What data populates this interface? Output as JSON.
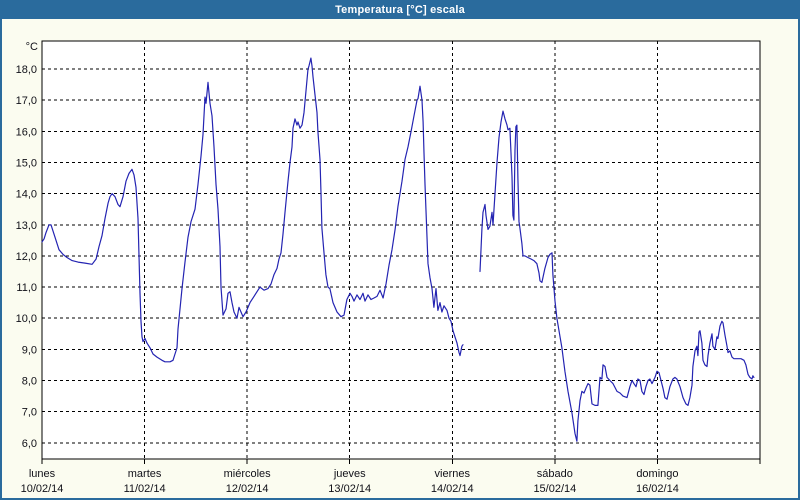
{
  "window": {
    "title": "Temperatura [°C] escala"
  },
  "chart_data": {
    "type": "line",
    "title": "Temperatura [°C] escala",
    "y_unit": "°C",
    "ylabel": "Temperatura",
    "xlabel": "",
    "grid": true,
    "legend": "none",
    "line_color": "#2424b2",
    "text_color": "#101018",
    "y_axis": {
      "top": 18.9,
      "bottom": 5.48
    },
    "x_axis": {
      "min_day": 0,
      "max_day": 7
    },
    "y_ticks": [
      {
        "v": 18,
        "label": "18,0"
      },
      {
        "v": 17,
        "label": "17,0"
      },
      {
        "v": 16,
        "label": "16,0"
      },
      {
        "v": 15,
        "label": "15,0"
      },
      {
        "v": 14,
        "label": "14,0"
      },
      {
        "v": 13,
        "label": "13,0"
      },
      {
        "v": 12,
        "label": "12,0"
      },
      {
        "v": 11,
        "label": "11,0"
      },
      {
        "v": 10,
        "label": "10,0"
      },
      {
        "v": 9,
        "label": "9,0"
      },
      {
        "v": 8,
        "label": "8,0"
      },
      {
        "v": 7,
        "label": "7,0"
      },
      {
        "v": 6,
        "label": "6,0"
      }
    ],
    "x_ticks": [
      {
        "day": 0,
        "name": "lunes",
        "date": "10/02/14"
      },
      {
        "day": 1,
        "name": "martes",
        "date": "11/02/14"
      },
      {
        "day": 2,
        "name": "miércoles",
        "date": "12/02/14"
      },
      {
        "day": 3,
        "name": "jueves",
        "date": "13/02/14"
      },
      {
        "day": 4,
        "name": "viernes",
        "date": "14/02/14"
      },
      {
        "day": 5,
        "name": "sábado",
        "date": "15/02/14"
      },
      {
        "day": 6,
        "name": "domingo",
        "date": "16/02/14"
      }
    ],
    "series_name": "Temperatura [°C]",
    "segments": [
      [
        [
          0.0,
          12.45
        ],
        [
          0.02,
          12.55
        ],
        [
          0.039,
          12.75
        ],
        [
          0.068,
          13.0
        ],
        [
          0.088,
          13.0
        ],
        [
          0.127,
          12.6
        ],
        [
          0.166,
          12.2
        ],
        [
          0.205,
          12.05
        ],
        [
          0.244,
          11.95
        ],
        [
          0.293,
          11.85
        ],
        [
          0.351,
          11.8
        ],
        [
          0.419,
          11.77
        ],
        [
          0.488,
          11.73
        ],
        [
          0.527,
          11.9
        ],
        [
          0.556,
          12.3
        ],
        [
          0.585,
          12.65
        ],
        [
          0.614,
          13.2
        ],
        [
          0.644,
          13.7
        ],
        [
          0.663,
          13.9
        ],
        [
          0.683,
          14.0
        ],
        [
          0.712,
          13.9
        ],
        [
          0.741,
          13.65
        ],
        [
          0.76,
          13.58
        ],
        [
          0.79,
          13.9
        ],
        [
          0.819,
          14.4
        ],
        [
          0.848,
          14.65
        ],
        [
          0.877,
          14.78
        ],
        [
          0.897,
          14.6
        ],
        [
          0.916,
          14.2
        ],
        [
          0.936,
          13.2
        ],
        [
          0.946,
          12.0
        ],
        [
          0.955,
          10.8
        ],
        [
          0.965,
          9.9
        ],
        [
          0.975,
          9.4
        ],
        [
          0.985,
          9.25
        ],
        [
          1.004,
          9.35
        ],
        [
          1.024,
          9.2
        ],
        [
          1.053,
          9.05
        ],
        [
          1.082,
          8.85
        ],
        [
          1.121,
          8.75
        ],
        [
          1.17,
          8.65
        ],
        [
          1.199,
          8.6
        ],
        [
          1.248,
          8.6
        ],
        [
          1.277,
          8.65
        ],
        [
          1.297,
          8.85
        ],
        [
          1.316,
          9.05
        ],
        [
          1.326,
          9.65
        ],
        [
          1.345,
          10.3
        ],
        [
          1.365,
          10.95
        ],
        [
          1.394,
          11.8
        ],
        [
          1.423,
          12.6
        ],
        [
          1.453,
          13.1
        ],
        [
          1.492,
          13.5
        ],
        [
          1.521,
          14.3
        ],
        [
          1.55,
          15.2
        ],
        [
          1.57,
          15.9
        ],
        [
          1.589,
          17.1
        ],
        [
          1.599,
          16.9
        ],
        [
          1.618,
          17.57
        ],
        [
          1.638,
          16.9
        ],
        [
          1.657,
          16.5
        ],
        [
          1.677,
          15.5
        ],
        [
          1.696,
          14.3
        ],
        [
          1.716,
          13.5
        ],
        [
          1.735,
          12.3
        ],
        [
          1.745,
          11.0
        ],
        [
          1.765,
          10.1
        ],
        [
          1.794,
          10.3
        ],
        [
          1.813,
          10.8
        ],
        [
          1.833,
          10.85
        ],
        [
          1.852,
          10.5
        ],
        [
          1.872,
          10.2
        ],
        [
          1.901,
          10.0
        ],
        [
          1.921,
          10.35
        ],
        [
          1.94,
          10.2
        ],
        [
          1.96,
          10.05
        ],
        [
          1.989,
          10.2
        ],
        [
          2.028,
          10.5
        ],
        [
          2.067,
          10.7
        ],
        [
          2.096,
          10.85
        ],
        [
          2.125,
          11.0
        ],
        [
          2.164,
          10.9
        ],
        [
          2.203,
          10.95
        ],
        [
          2.233,
          11.1
        ],
        [
          2.262,
          11.4
        ],
        [
          2.291,
          11.6
        ],
        [
          2.311,
          11.9
        ],
        [
          2.33,
          12.1
        ],
        [
          2.35,
          12.7
        ],
        [
          2.369,
          13.4
        ],
        [
          2.398,
          14.4
        ],
        [
          2.418,
          15.0
        ],
        [
          2.437,
          15.5
        ],
        [
          2.447,
          16.1
        ],
        [
          2.467,
          16.4
        ],
        [
          2.486,
          16.2
        ],
        [
          2.496,
          16.3
        ],
        [
          2.515,
          16.1
        ],
        [
          2.535,
          16.2
        ],
        [
          2.554,
          16.6
        ],
        [
          2.574,
          17.3
        ],
        [
          2.593,
          18.0
        ],
        [
          2.603,
          18.1
        ],
        [
          2.622,
          18.35
        ],
        [
          2.632,
          18.1
        ],
        [
          2.642,
          17.75
        ],
        [
          2.661,
          17.2
        ],
        [
          2.681,
          16.6
        ],
        [
          2.69,
          16.0
        ],
        [
          2.71,
          15.1
        ],
        [
          2.72,
          14.0
        ],
        [
          2.729,
          12.9
        ],
        [
          2.749,
          12.1
        ],
        [
          2.768,
          11.4
        ],
        [
          2.788,
          11.0
        ],
        [
          2.807,
          10.95
        ],
        [
          2.837,
          10.5
        ],
        [
          2.876,
          10.2
        ],
        [
          2.915,
          10.05
        ],
        [
          2.944,
          10.1
        ],
        [
          2.973,
          10.6
        ],
        [
          3.003,
          10.8
        ],
        [
          3.022,
          10.7
        ],
        [
          3.042,
          10.55
        ],
        [
          3.071,
          10.75
        ],
        [
          3.1,
          10.6
        ],
        [
          3.13,
          10.8
        ],
        [
          3.149,
          10.55
        ],
        [
          3.178,
          10.75
        ],
        [
          3.208,
          10.6
        ],
        [
          3.237,
          10.65
        ],
        [
          3.266,
          10.7
        ],
        [
          3.295,
          10.9
        ],
        [
          3.325,
          10.65
        ],
        [
          3.354,
          11.1
        ],
        [
          3.383,
          11.7
        ],
        [
          3.412,
          12.2
        ],
        [
          3.442,
          12.85
        ],
        [
          3.471,
          13.6
        ],
        [
          3.51,
          14.4
        ],
        [
          3.539,
          15.1
        ],
        [
          3.568,
          15.5
        ],
        [
          3.598,
          16.0
        ],
        [
          3.627,
          16.5
        ],
        [
          3.656,
          17.0
        ],
        [
          3.666,
          17.05
        ],
        [
          3.685,
          17.45
        ],
        [
          3.705,
          17.0
        ],
        [
          3.715,
          16.3
        ],
        [
          3.724,
          15.3
        ],
        [
          3.734,
          14.3
        ],
        [
          3.744,
          13.45
        ],
        [
          3.753,
          12.6
        ],
        [
          3.763,
          11.75
        ],
        [
          3.783,
          11.3
        ],
        [
          3.802,
          10.95
        ],
        [
          3.821,
          10.35
        ],
        [
          3.841,
          10.95
        ],
        [
          3.86,
          10.25
        ],
        [
          3.88,
          10.5
        ],
        [
          3.899,
          10.2
        ],
        [
          3.919,
          10.4
        ],
        [
          3.948,
          10.25
        ],
        [
          3.968,
          10.0
        ],
        [
          3.987,
          9.9
        ],
        [
          4.007,
          9.6
        ],
        [
          4.026,
          9.4
        ],
        [
          4.046,
          9.2
        ],
        [
          4.065,
          8.9
        ],
        [
          4.075,
          8.8
        ],
        [
          4.094,
          9.1
        ],
        [
          4.104,
          9.15
        ]
      ],
      [
        [
          4.27,
          11.5
        ],
        [
          4.28,
          12.2
        ],
        [
          4.289,
          12.85
        ],
        [
          4.299,
          13.4
        ],
        [
          4.319,
          13.65
        ],
        [
          4.329,
          13.3
        ],
        [
          4.348,
          12.85
        ],
        [
          4.367,
          12.95
        ],
        [
          4.387,
          13.4
        ],
        [
          4.397,
          13.0
        ],
        [
          4.416,
          14.0
        ],
        [
          4.436,
          15.0
        ],
        [
          4.455,
          15.8
        ],
        [
          4.475,
          16.3
        ],
        [
          4.494,
          16.65
        ],
        [
          4.514,
          16.4
        ],
        [
          4.533,
          16.2
        ],
        [
          4.543,
          16.05
        ],
        [
          4.562,
          16.1
        ],
        [
          4.572,
          15.3
        ],
        [
          4.582,
          14.55
        ],
        [
          4.591,
          13.3
        ],
        [
          4.601,
          13.15
        ],
        [
          4.611,
          15.4
        ],
        [
          4.62,
          16.15
        ],
        [
          4.63,
          16.2
        ],
        [
          4.64,
          14.5
        ],
        [
          4.65,
          13.1
        ],
        [
          4.659,
          12.9
        ],
        [
          4.679,
          12.4
        ],
        [
          4.689,
          12.0
        ],
        [
          4.708,
          12.0
        ],
        [
          4.737,
          11.95
        ],
        [
          4.767,
          11.9
        ],
        [
          4.796,
          11.85
        ],
        [
          4.825,
          11.75
        ],
        [
          4.845,
          11.45
        ],
        [
          4.855,
          11.2
        ],
        [
          4.874,
          11.15
        ],
        [
          4.903,
          11.6
        ],
        [
          4.933,
          11.95
        ],
        [
          4.952,
          12.05
        ],
        [
          4.972,
          12.1
        ],
        [
          4.981,
          11.4
        ],
        [
          5.001,
          10.55
        ],
        [
          5.02,
          10.0
        ],
        [
          5.04,
          9.6
        ],
        [
          5.069,
          9.05
        ],
        [
          5.098,
          8.3
        ],
        [
          5.128,
          7.65
        ],
        [
          5.167,
          6.95
        ],
        [
          5.196,
          6.3
        ],
        [
          5.215,
          6.05
        ],
        [
          5.225,
          6.7
        ],
        [
          5.245,
          7.35
        ],
        [
          5.264,
          7.65
        ],
        [
          5.284,
          7.6
        ],
        [
          5.303,
          7.75
        ],
        [
          5.323,
          7.9
        ],
        [
          5.342,
          7.85
        ],
        [
          5.362,
          7.25
        ],
        [
          5.391,
          7.2
        ],
        [
          5.42,
          7.2
        ],
        [
          5.44,
          8.1
        ],
        [
          5.459,
          8.05
        ],
        [
          5.469,
          8.5
        ],
        [
          5.489,
          8.45
        ],
        [
          5.508,
          8.1
        ],
        [
          5.537,
          8.0
        ],
        [
          5.567,
          7.9
        ],
        [
          5.606,
          7.65
        ],
        [
          5.635,
          7.6
        ],
        [
          5.664,
          7.5
        ],
        [
          5.703,
          7.45
        ],
        [
          5.732,
          7.8
        ],
        [
          5.752,
          8.0
        ],
        [
          5.771,
          7.9
        ],
        [
          5.791,
          7.8
        ],
        [
          5.81,
          8.05
        ],
        [
          5.83,
          8.0
        ],
        [
          5.849,
          7.65
        ],
        [
          5.869,
          7.55
        ],
        [
          5.888,
          7.8
        ],
        [
          5.908,
          8.0
        ],
        [
          5.927,
          8.05
        ],
        [
          5.947,
          7.9
        ],
        [
          5.976,
          8.1
        ],
        [
          5.996,
          8.3
        ],
        [
          6.015,
          8.25
        ],
        [
          6.035,
          8.0
        ],
        [
          6.054,
          7.75
        ],
        [
          6.073,
          7.45
        ],
        [
          6.093,
          7.4
        ],
        [
          6.122,
          7.8
        ],
        [
          6.151,
          8.05
        ],
        [
          6.171,
          8.1
        ],
        [
          6.19,
          8.05
        ],
        [
          6.22,
          7.8
        ],
        [
          6.249,
          7.45
        ],
        [
          6.278,
          7.25
        ],
        [
          6.298,
          7.2
        ],
        [
          6.317,
          7.45
        ],
        [
          6.337,
          7.85
        ],
        [
          6.346,
          8.45
        ],
        [
          6.366,
          8.95
        ],
        [
          6.385,
          9.1
        ],
        [
          6.395,
          8.8
        ],
        [
          6.405,
          9.55
        ],
        [
          6.415,
          9.6
        ],
        [
          6.434,
          9.2
        ],
        [
          6.444,
          8.65
        ],
        [
          6.463,
          8.5
        ],
        [
          6.483,
          8.45
        ],
        [
          6.493,
          8.8
        ],
        [
          6.512,
          9.2
        ],
        [
          6.532,
          9.5
        ],
        [
          6.541,
          9.1
        ],
        [
          6.561,
          9.0
        ],
        [
          6.58,
          9.4
        ],
        [
          6.59,
          9.35
        ],
        [
          6.61,
          9.75
        ],
        [
          6.629,
          9.9
        ],
        [
          6.639,
          9.85
        ],
        [
          6.659,
          9.45
        ],
        [
          6.678,
          9.1
        ],
        [
          6.688,
          8.9
        ],
        [
          6.707,
          8.95
        ],
        [
          6.727,
          8.75
        ],
        [
          6.746,
          8.7
        ],
        [
          6.785,
          8.7
        ],
        [
          6.815,
          8.7
        ],
        [
          6.844,
          8.65
        ],
        [
          6.863,
          8.5
        ],
        [
          6.883,
          8.2
        ],
        [
          6.902,
          8.1
        ],
        [
          6.922,
          8.05
        ],
        [
          6.931,
          8.15
        ],
        [
          6.941,
          8.1
        ]
      ]
    ]
  }
}
